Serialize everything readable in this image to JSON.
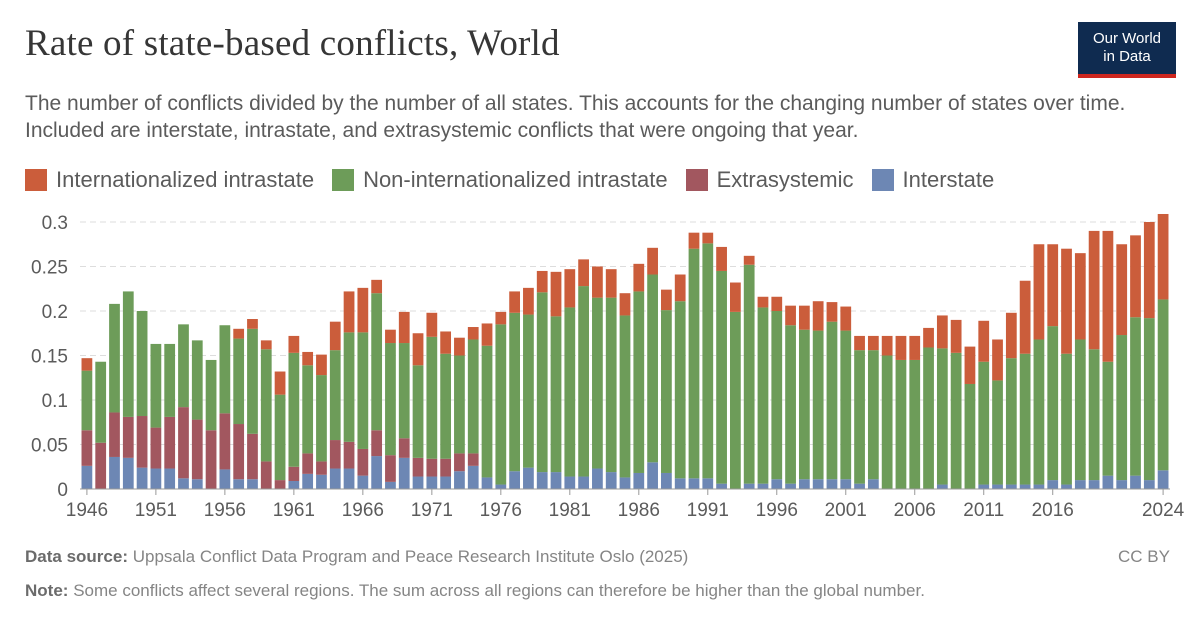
{
  "header": {
    "title": "Rate of state-based conflicts, World",
    "subtitle": "The number of conflicts divided by the number of all states. This accounts for the changing number of states over time. Included are interstate, intrastate, and extrasystemic conflicts that were ongoing that year.",
    "logo_line1": "Our World",
    "logo_line2": "in Data"
  },
  "footer": {
    "source_label": "Data source:",
    "source_text": "Uppsala Conflict Data Program and Peace Research Institute Oslo (2025)",
    "note_label": "Note:",
    "note_text": "Some conflicts affect several regions. The sum across all regions can therefore be higher than the global number.",
    "license": "CC BY"
  },
  "chart_data": {
    "type": "bar",
    "stacked": true,
    "title": "Rate of state-based conflicts, World",
    "xlabel": "",
    "ylabel": "",
    "ylim": [
      0,
      0.3
    ],
    "yticks": [
      "0",
      "0.05",
      "0.1",
      "0.15",
      "0.2",
      "0.25",
      "0.3"
    ],
    "ytick_values": [
      0,
      0.05,
      0.1,
      0.15,
      0.2,
      0.25,
      0.3
    ],
    "xtick_labels": [
      "1946",
      "1951",
      "1956",
      "1961",
      "1966",
      "1971",
      "1976",
      "1981",
      "1986",
      "1991",
      "1996",
      "2001",
      "2006",
      "2011",
      "2016",
      "2024"
    ],
    "grid": true,
    "legend_position": "top-left",
    "categories": [
      1946,
      1947,
      1948,
      1949,
      1950,
      1951,
      1952,
      1953,
      1954,
      1955,
      1956,
      1957,
      1958,
      1959,
      1960,
      1961,
      1962,
      1963,
      1964,
      1965,
      1966,
      1967,
      1968,
      1969,
      1970,
      1971,
      1972,
      1973,
      1974,
      1975,
      1976,
      1977,
      1978,
      1979,
      1980,
      1981,
      1982,
      1983,
      1984,
      1985,
      1986,
      1987,
      1988,
      1989,
      1990,
      1991,
      1992,
      1993,
      1994,
      1995,
      1996,
      1997,
      1998,
      1999,
      2000,
      2001,
      2002,
      2003,
      2004,
      2005,
      2006,
      2007,
      2008,
      2009,
      2010,
      2011,
      2012,
      2013,
      2014,
      2015,
      2016,
      2017,
      2018,
      2019,
      2020,
      2021,
      2022,
      2023,
      2024
    ],
    "series": [
      {
        "name": "Interstate",
        "color": "#6d87b4",
        "values": [
          0.026,
          0,
          0.036,
          0.035,
          0.024,
          0.023,
          0.023,
          0.012,
          0.011,
          0,
          0.022,
          0.011,
          0.011,
          0,
          0,
          0.009,
          0.017,
          0.016,
          0.023,
          0.023,
          0.015,
          0.037,
          0.008,
          0.035,
          0.014,
          0.014,
          0.014,
          0.02,
          0.026,
          0.013,
          0.005,
          0.02,
          0.024,
          0.019,
          0.019,
          0.014,
          0.014,
          0.023,
          0.019,
          0.013,
          0.018,
          0.03,
          0.018,
          0.012,
          0.012,
          0.012,
          0.006,
          0,
          0.006,
          0.006,
          0.011,
          0.006,
          0.011,
          0.011,
          0.011,
          0.011,
          0.006,
          0.011,
          0,
          0,
          0,
          0,
          0.005,
          0,
          0,
          0.005,
          0.005,
          0.005,
          0.005,
          0.005,
          0.01,
          0.005,
          0.01,
          0.01,
          0.015,
          0.01,
          0.015,
          0.01,
          0.021
        ]
      },
      {
        "name": "Extrasystemic",
        "color": "#a2575f",
        "values": [
          0.04,
          0.052,
          0.05,
          0.046,
          0.058,
          0.046,
          0.058,
          0.08,
          0.067,
          0.066,
          0.063,
          0.062,
          0.051,
          0.031,
          0.01,
          0.016,
          0.023,
          0.015,
          0.032,
          0.03,
          0.03,
          0.029,
          0.03,
          0.022,
          0.021,
          0.02,
          0.02,
          0.02,
          0.014,
          0,
          0,
          0,
          0,
          0,
          0,
          0,
          0,
          0,
          0,
          0,
          0,
          0,
          0,
          0,
          0,
          0,
          0,
          0,
          0,
          0,
          0,
          0,
          0,
          0,
          0,
          0,
          0,
          0,
          0,
          0,
          0,
          0,
          0,
          0,
          0,
          0,
          0,
          0,
          0,
          0,
          0,
          0,
          0,
          0,
          0,
          0,
          0,
          0,
          0
        ]
      },
      {
        "name": "Non-internationalized intrastate",
        "color": "#6d9c59",
        "values": [
          0.067,
          0.091,
          0.122,
          0.141,
          0.118,
          0.094,
          0.082,
          0.093,
          0.089,
          0.079,
          0.099,
          0.096,
          0.118,
          0.126,
          0.096,
          0.128,
          0.099,
          0.097,
          0.101,
          0.123,
          0.131,
          0.154,
          0.126,
          0.107,
          0.104,
          0.137,
          0.118,
          0.11,
          0.128,
          0.148,
          0.18,
          0.178,
          0.172,
          0.202,
          0.175,
          0.19,
          0.214,
          0.192,
          0.196,
          0.182,
          0.204,
          0.211,
          0.183,
          0.199,
          0.258,
          0.264,
          0.239,
          0.199,
          0.246,
          0.198,
          0.189,
          0.178,
          0.168,
          0.167,
          0.177,
          0.167,
          0.15,
          0.145,
          0.15,
          0.145,
          0.145,
          0.159,
          0.153,
          0.153,
          0.118,
          0.138,
          0.117,
          0.142,
          0.147,
          0.163,
          0.173,
          0.147,
          0.158,
          0.147,
          0.128,
          0.163,
          0.178,
          0.182,
          0.192
        ]
      },
      {
        "name": "Internationalized intrastate",
        "color": "#cb5d3b",
        "values": [
          0.014,
          0,
          0,
          0,
          0,
          0,
          0,
          0,
          0,
          0,
          0,
          0.011,
          0.011,
          0.01,
          0.026,
          0.019,
          0.015,
          0.023,
          0.032,
          0.046,
          0.05,
          0.015,
          0.015,
          0.035,
          0.036,
          0.027,
          0.025,
          0.02,
          0.014,
          0.025,
          0.014,
          0.024,
          0.03,
          0.024,
          0.05,
          0.043,
          0.03,
          0.035,
          0.032,
          0.025,
          0.031,
          0.03,
          0.023,
          0.03,
          0.018,
          0.012,
          0.027,
          0.033,
          0.01,
          0.012,
          0.016,
          0.022,
          0.027,
          0.033,
          0.022,
          0.027,
          0.016,
          0.016,
          0.022,
          0.027,
          0.027,
          0.022,
          0.037,
          0.037,
          0.042,
          0.046,
          0.046,
          0.051,
          0.082,
          0.107,
          0.092,
          0.118,
          0.097,
          0.133,
          0.147,
          0.102,
          0.092,
          0.108,
          0.096
        ]
      }
    ]
  }
}
